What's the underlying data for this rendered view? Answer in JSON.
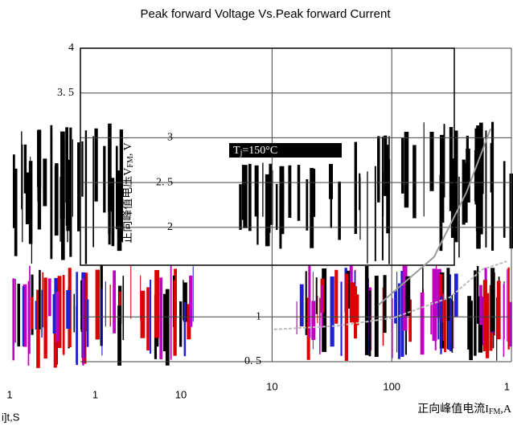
{
  "chart_data": [
    {
      "type": "line",
      "title": "Peak forward Voltage Vs.Peak forward Current",
      "y_label": "正向峰值电压V",
      "y_label_sub": "FM",
      "y_label_unit": ", V",
      "x_label": "正向峰值电流I",
      "x_label_sub": "FM",
      "x_label_unit": ",A",
      "annotation": "T",
      "annotation_sub": "j",
      "annotation_rest": "=150°C",
      "xscale": "log",
      "xlim": [
        0.25,
        1000
      ],
      "xticks": [
        10,
        100,
        {
          "value": 1000,
          "label": "1"
        }
      ],
      "ylim": [
        0.5,
        4
      ],
      "yticks": [
        4,
        {
          "value": 3.5,
          "label": "3. 5"
        },
        3,
        {
          "value": 2.5,
          "label": "2. 5"
        },
        2,
        1,
        {
          "value": 0.5,
          "label": "0. 5"
        }
      ],
      "grid": true,
      "series": [
        {
          "color": "#bbbbbb",
          "x": [
            10.4,
            35,
            104,
            308,
            573,
            912
          ],
          "values": [
            0.86,
            0.9,
            0.99,
            1.22,
            1.53,
            1.62
          ]
        },
        {
          "color": "#999999",
          "x": [
            77,
            226,
            421,
            670
          ],
          "values": [
            1.13,
            1.67,
            2.39,
            3.1
          ]
        }
      ]
    },
    {
      "type": "line",
      "x_label": "i]t,S",
      "xscale": "log",
      "xlim": [
        0.09,
        12
      ],
      "xticks": [
        {
          "value": 0.1,
          "label": "1"
        },
        1,
        10
      ],
      "series": []
    }
  ]
}
